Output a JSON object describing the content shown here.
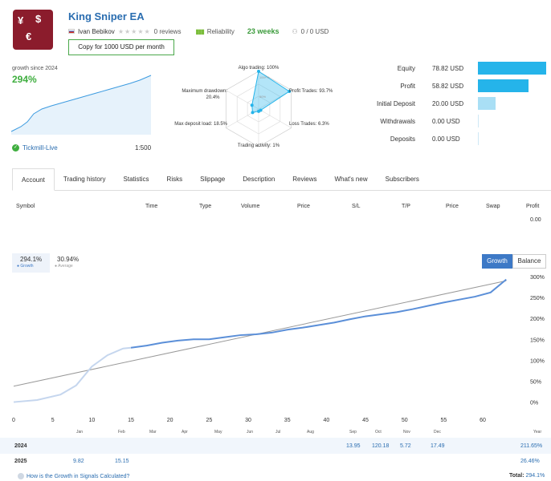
{
  "header": {
    "title": "King Sniper EA",
    "author": "Ivan Bebikov",
    "reviews": "0 reviews",
    "reliability": "Reliability",
    "weeks": "23 weeks",
    "subscribers": "0 / 0 USD",
    "copy_button": "Copy for 1000 USD per month"
  },
  "summary": {
    "growth_since": "growth since 2024",
    "growth_value": "294%",
    "broker": "Tickmill-Live",
    "leverage": "1:500"
  },
  "radar": {
    "algo": "Algo trading: 100%",
    "profit_trades": "Profit Trades: 93.7%",
    "loss_trades": "Loss Trades: 6.3%",
    "trading_activity": "Trading activity: 1%",
    "max_deposit_load": "Max deposit load: 18.5%",
    "max_drawdown_label": "Maximum drawdown:",
    "max_drawdown_value": "20.4%",
    "ring100": "100+%",
    "ring50": "50%",
    "values": [
      100,
      93.7,
      6.3,
      1,
      18.5,
      20.4
    ]
  },
  "stats": [
    {
      "label": "Equity",
      "value": "78.82 USD",
      "bar": 78.82,
      "color": "#25b4ea"
    },
    {
      "label": "Profit",
      "value": "58.82 USD",
      "bar": 58.82,
      "color": "#25b4ea"
    },
    {
      "label": "Initial Deposit",
      "value": "20.00 USD",
      "bar": 20.0,
      "color": "#a9dff5"
    },
    {
      "label": "Withdrawals",
      "value": "0.00 USD",
      "bar": 0,
      "color": "#25b4ea"
    },
    {
      "label": "Deposits",
      "value": "0.00 USD",
      "bar": 0,
      "color": "#25b4ea"
    }
  ],
  "tabs": [
    "Account",
    "Trading history",
    "Statistics",
    "Risks",
    "Slippage",
    "Description",
    "Reviews",
    "What's new",
    "Subscribers"
  ],
  "table_headers": [
    "Symbol",
    "Time",
    "Type",
    "Volume",
    "Price",
    "S/L",
    "T/P",
    "Price",
    "Swap",
    "Profit"
  ],
  "table_profit_total": "0.00",
  "chart_controls": {
    "growth_value": "294.1%",
    "growth_label": "Growth",
    "average_value": "30.94%",
    "average_label": "Average",
    "btn_growth": "Growth",
    "btn_balance": "Balance"
  },
  "chart_data": {
    "type": "line",
    "x_ticks": [
      "0",
      "5",
      "10",
      "15",
      "20",
      "25",
      "30",
      "35",
      "40",
      "45",
      "50",
      "55",
      "60"
    ],
    "y_ticks": [
      "300%",
      "250%",
      "200%",
      "150%",
      "100%",
      "50%",
      "0%"
    ],
    "xlim": [
      0,
      64
    ],
    "ylim": [
      -20,
      300
    ],
    "series": [
      {
        "name": "Growth",
        "x": [
          0,
          3,
          6,
          8,
          10,
          12,
          14,
          15,
          17,
          19,
          21,
          23,
          25,
          27,
          29,
          31,
          33,
          35,
          37,
          39,
          41,
          43,
          45,
          47,
          49,
          51,
          53,
          55,
          57,
          59,
          61,
          63
        ],
        "y": [
          0,
          5,
          18,
          40,
          85,
          112,
          128,
          130,
          135,
          142,
          147,
          150,
          150,
          155,
          160,
          162,
          166,
          173,
          178,
          184,
          190,
          198,
          205,
          210,
          215,
          222,
          230,
          238,
          245,
          252,
          262,
          293
        ]
      },
      {
        "name": "Average",
        "x": [
          0,
          63
        ],
        "y": [
          38,
          290
        ]
      }
    ]
  },
  "year_table": {
    "months": [
      "Jan",
      "Feb",
      "Mar",
      "Apr",
      "May",
      "Jun",
      "Jul",
      "Aug",
      "Sep",
      "Oct",
      "Nov",
      "Dec",
      "Year"
    ],
    "rows": [
      {
        "year": "2024",
        "cells": [
          "",
          "",
          "",
          "",
          "",
          "",
          "",
          "",
          "13.95",
          "120.18",
          "5.72",
          "17.49",
          "211.65%"
        ]
      },
      {
        "year": "2025",
        "cells": [
          "9.82",
          "15.15",
          "",
          "",
          "",
          "",
          "",
          "",
          "",
          "",
          "",
          "",
          "26.46%"
        ]
      }
    ]
  },
  "footer": {
    "how": "How is the Growth in Signals Calculated?",
    "total_label": "Total:",
    "total_value": "294.1%"
  }
}
